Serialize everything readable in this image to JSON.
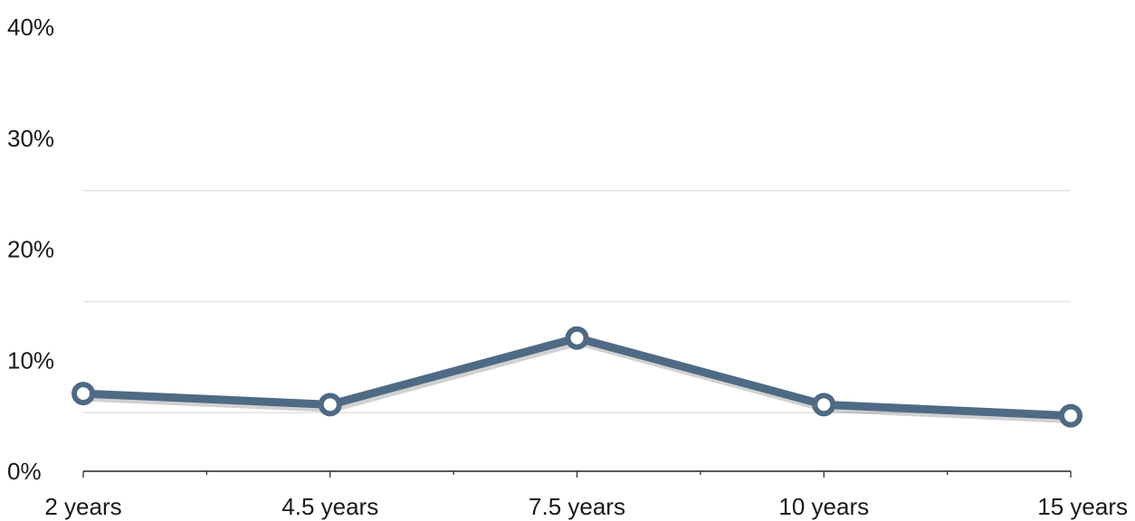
{
  "chart_data": {
    "type": "line",
    "title": "",
    "xlabel": "",
    "ylabel": "",
    "categories": [
      "2 years",
      "4.5 years",
      "7.5 years",
      "10 years",
      "15 years"
    ],
    "series": [
      {
        "values": [
          7,
          6,
          12,
          6,
          5
        ],
        "color": "#4f6a84"
      }
    ],
    "ylim": [
      0,
      40
    ],
    "yticks": [
      "0%",
      "10%",
      "20%",
      "30%",
      "40%"
    ],
    "ytick_values": [
      0,
      10,
      20,
      30,
      40
    ],
    "grid": true,
    "legend": "none"
  }
}
